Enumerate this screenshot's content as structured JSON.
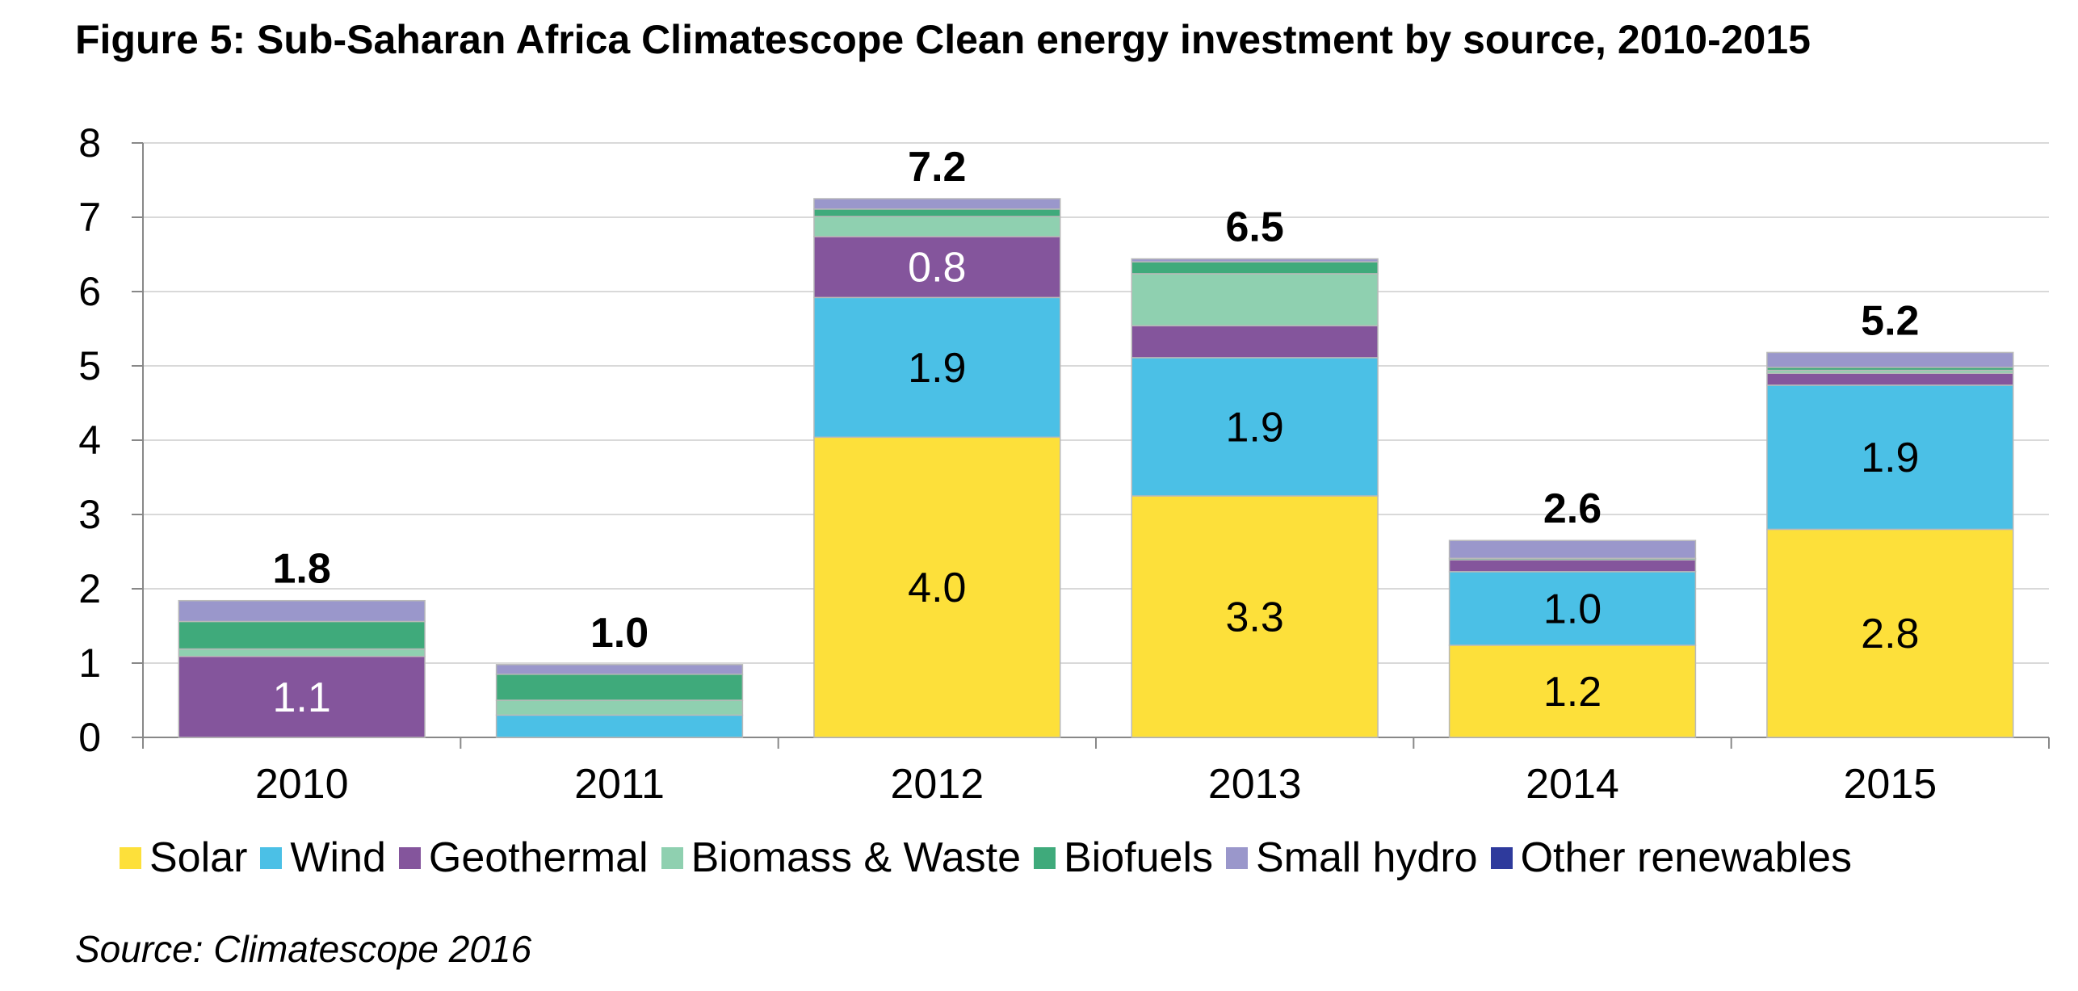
{
  "title": "Figure 5: Sub-Saharan Africa Climatescope Clean energy investment by source, 2010-2015",
  "source": "Source: Climatescope 2016",
  "chart_data": {
    "type": "bar",
    "stacked": true,
    "categories": [
      "2010",
      "2011",
      "2012",
      "2013",
      "2014",
      "2015"
    ],
    "ylim": [
      0,
      8
    ],
    "yticks": [
      "0",
      "1",
      "2",
      "3",
      "4",
      "5",
      "6",
      "7",
      "8"
    ],
    "grid": true,
    "legend_position": "bottom",
    "series": [
      {
        "name": "Solar",
        "color": "#FDE03A",
        "values": [
          0,
          0,
          4.04,
          3.25,
          1.24,
          2.8
        ]
      },
      {
        "name": "Wind",
        "color": "#4BC0E6",
        "values": [
          0,
          0.3,
          1.88,
          1.86,
          0.99,
          1.94
        ]
      },
      {
        "name": "Geothermal",
        "color": "#84559C",
        "values": [
          1.09,
          0,
          0.82,
          0.43,
          0.16,
          0.16
        ]
      },
      {
        "name": "Biomass & Waste",
        "color": "#8FD0B0",
        "values": [
          0.1,
          0.2,
          0.27,
          0.7,
          0,
          0.04
        ]
      },
      {
        "name": "Biofuels",
        "color": "#3FAA7B",
        "values": [
          0.37,
          0.35,
          0.1,
          0.16,
          0.02,
          0.04
        ]
      },
      {
        "name": "Small hydro",
        "color": "#9A97CB",
        "values": [
          0.28,
          0.13,
          0.14,
          0.04,
          0.24,
          0.2
        ]
      },
      {
        "name": "Other renewables",
        "color": "#2E3A9C",
        "values": [
          0,
          0,
          0,
          0,
          0,
          0
        ]
      }
    ],
    "totals": [
      "1.8",
      "1.0",
      "7.2",
      "6.5",
      "2.6",
      "5.2"
    ],
    "segment_labels": [
      {
        "series": 2,
        "category": 0,
        "text": "1.1",
        "color": "#ffffff"
      },
      {
        "series": 0,
        "category": 2,
        "text": "4.0",
        "color": "#000000"
      },
      {
        "series": 1,
        "category": 2,
        "text": "1.9",
        "color": "#000000"
      },
      {
        "series": 2,
        "category": 2,
        "text": "0.8",
        "color": "#ffffff"
      },
      {
        "series": 0,
        "category": 3,
        "text": "3.3",
        "color": "#000000"
      },
      {
        "series": 1,
        "category": 3,
        "text": "1.9",
        "color": "#000000"
      },
      {
        "series": 0,
        "category": 4,
        "text": "1.2",
        "color": "#000000"
      },
      {
        "series": 1,
        "category": 4,
        "text": "1.0",
        "color": "#000000"
      },
      {
        "series": 0,
        "category": 5,
        "text": "2.8",
        "color": "#000000"
      },
      {
        "series": 1,
        "category": 5,
        "text": "1.9",
        "color": "#000000"
      }
    ]
  }
}
